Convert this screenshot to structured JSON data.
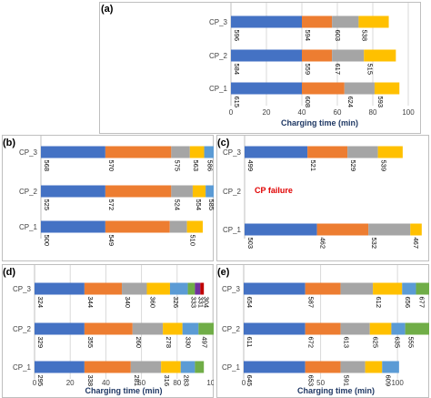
{
  "colors": {
    "blue": "#4472C4",
    "orange": "#ED7D31",
    "gray": "#A5A5A5",
    "yellow": "#FFC000",
    "lightblue": "#5B9BD5",
    "green": "#70AD47",
    "purple": "#7030A0",
    "red": "#C00000"
  },
  "chart_data": [
    {
      "id": "a",
      "panel_label": "(a)",
      "type": "bar",
      "orientation": "horizontal",
      "stacked": true,
      "categories": [
        "CP_1",
        "CP_2",
        "CP_3"
      ],
      "xlabel": "Charging time (min)",
      "xlim": [
        0,
        100
      ],
      "x_ticks": [
        0,
        20,
        40,
        60,
        80,
        100
      ],
      "segments": [
        [
          {
            "value": 40,
            "label": "615",
            "color": "blue"
          },
          {
            "value": 24,
            "label": "608",
            "color": "orange"
          },
          {
            "value": 17,
            "label": "624",
            "color": "gray"
          },
          {
            "value": 14,
            "label": "593",
            "color": "yellow"
          }
        ],
        [
          {
            "value": 40,
            "label": "584",
            "color": "blue"
          },
          {
            "value": 17,
            "label": "559",
            "color": "orange"
          },
          {
            "value": 18,
            "label": "617",
            "color": "gray"
          },
          {
            "value": 18,
            "label": "515",
            "color": "yellow"
          }
        ],
        [
          {
            "value": 40,
            "label": "596",
            "color": "blue"
          },
          {
            "value": 17,
            "label": "594",
            "color": "orange"
          },
          {
            "value": 15,
            "label": "603",
            "color": "gray"
          },
          {
            "value": 17,
            "label": "538",
            "color": "yellow"
          }
        ]
      ]
    },
    {
      "id": "b",
      "panel_label": "(b)",
      "type": "bar",
      "orientation": "horizontal",
      "stacked": true,
      "categories": [
        "CP_1",
        "CP_2",
        "CP_3"
      ],
      "xlabel": "",
      "xlim": [
        0,
        120
      ],
      "x_ticks": [],
      "segments": [
        [
          {
            "value": 45,
            "label": "500",
            "color": "blue"
          },
          {
            "value": 45,
            "label": "549",
            "color": "orange"
          },
          {
            "value": 12,
            "label": "",
            "color": "gray"
          },
          {
            "value": 11,
            "label": "510",
            "color": "yellow"
          }
        ],
        [
          {
            "value": 45,
            "label": "525",
            "color": "blue"
          },
          {
            "value": 46,
            "label": "572",
            "color": "orange"
          },
          {
            "value": 15,
            "label": "524",
            "color": "gray"
          },
          {
            "value": 9,
            "label": "554",
            "color": "yellow"
          },
          {
            "value": 18,
            "label": "585",
            "color": "lightblue"
          },
          {
            "value": 12,
            "label": "",
            "color": "green"
          }
        ],
        [
          {
            "value": 45,
            "label": "568",
            "color": "blue"
          },
          {
            "value": 46,
            "label": "570",
            "color": "orange"
          },
          {
            "value": 13,
            "label": "575",
            "color": "gray"
          },
          {
            "value": 10,
            "label": "563",
            "color": "yellow"
          },
          {
            "value": 17,
            "label": "586",
            "color": "lightblue"
          },
          {
            "value": 20,
            "label": "487",
            "color": "green"
          }
        ]
      ]
    },
    {
      "id": "c",
      "panel_label": "(c)",
      "type": "bar",
      "orientation": "horizontal",
      "stacked": true,
      "categories": [
        "CP_1",
        "CP_2",
        "CP_3"
      ],
      "xlabel": "",
      "xlim": [
        0,
        95
      ],
      "x_ticks": [],
      "annotation": "CP failure",
      "segments": [
        [
          {
            "value": 38,
            "label": "503",
            "color": "blue"
          },
          {
            "value": 27,
            "label": "462",
            "color": "orange"
          },
          {
            "value": 22,
            "label": "532",
            "color": "gray"
          },
          {
            "value": 6,
            "label": "467",
            "color": "yellow"
          }
        ],
        [],
        [
          {
            "value": 33,
            "label": "499",
            "color": "blue"
          },
          {
            "value": 21,
            "label": "521",
            "color": "orange"
          },
          {
            "value": 16,
            "label": "529",
            "color": "gray"
          },
          {
            "value": 13,
            "label": "539",
            "color": "yellow"
          }
        ]
      ]
    },
    {
      "id": "d",
      "panel_label": "(d)",
      "type": "bar",
      "orientation": "horizontal",
      "stacked": true,
      "categories": [
        "CP_1",
        "CP_2",
        "CP_3"
      ],
      "xlabel": "Charging time (min)",
      "xlim": [
        0,
        100
      ],
      "x_ticks": [
        0,
        20,
        40,
        60,
        80,
        100
      ],
      "segments": [
        [
          {
            "value": 28,
            "label": "295",
            "color": "blue"
          },
          {
            "value": 26,
            "label": "338",
            "color": "orange"
          },
          {
            "value": 17,
            "label": "281",
            "color": "gray"
          },
          {
            "value": 11,
            "label": "316",
            "color": "yellow"
          },
          {
            "value": 8,
            "label": "283",
            "color": "lightblue"
          },
          {
            "value": 5,
            "label": "",
            "color": "green"
          }
        ],
        [
          {
            "value": 28,
            "label": "329",
            "color": "blue"
          },
          {
            "value": 27,
            "label": "355",
            "color": "orange"
          },
          {
            "value": 17,
            "label": "260",
            "color": "gray"
          },
          {
            "value": 11,
            "label": "278",
            "color": "yellow"
          },
          {
            "value": 9,
            "label": "330",
            "color": "lightblue"
          },
          {
            "value": 9,
            "label": "497",
            "color": "green"
          }
        ],
        [
          {
            "value": 28,
            "label": "324",
            "color": "blue"
          },
          {
            "value": 21,
            "label": "344",
            "color": "orange"
          },
          {
            "value": 14,
            "label": "340",
            "color": "gray"
          },
          {
            "value": 13,
            "label": "360",
            "color": "yellow"
          },
          {
            "value": 10,
            "label": "326",
            "color": "lightblue"
          },
          {
            "value": 4,
            "label": "333",
            "color": "green"
          },
          {
            "value": 3,
            "label": "331",
            "color": "purple"
          },
          {
            "value": 2,
            "label": "304",
            "color": "red"
          }
        ]
      ]
    },
    {
      "id": "e",
      "panel_label": "(e)",
      "type": "bar",
      "orientation": "horizontal",
      "stacked": true,
      "categories": [
        "CP_1",
        "CP_2",
        "CP_3"
      ],
      "xlabel": "Charging time (min)",
      "xlim": [
        0,
        120
      ],
      "x_ticks": [
        0,
        50,
        100
      ],
      "segments": [
        [
          {
            "value": 40,
            "label": "645",
            "color": "blue"
          },
          {
            "value": 23,
            "label": "653",
            "color": "orange"
          },
          {
            "value": 16,
            "label": "591",
            "color": "gray"
          },
          {
            "value": 11,
            "label": "",
            "color": "yellow"
          },
          {
            "value": 11,
            "label": "609",
            "color": "lightblue"
          }
        ],
        [
          {
            "value": 40,
            "label": "611",
            "color": "blue"
          },
          {
            "value": 23,
            "label": "672",
            "color": "orange"
          },
          {
            "value": 19,
            "label": "613",
            "color": "gray"
          },
          {
            "value": 14,
            "label": "625",
            "color": "yellow"
          },
          {
            "value": 9,
            "label": "635",
            "color": "lightblue"
          },
          {
            "value": 21,
            "label": "555",
            "color": "green"
          }
        ],
        [
          {
            "value": 40,
            "label": "654",
            "color": "blue"
          },
          {
            "value": 23,
            "label": "587",
            "color": "orange"
          },
          {
            "value": 21,
            "label": "",
            "color": "gray"
          },
          {
            "value": 19,
            "label": "612",
            "color": "yellow"
          },
          {
            "value": 9,
            "label": "656",
            "color": "lightblue"
          },
          {
            "value": 15,
            "label": "677",
            "color": "green"
          }
        ]
      ]
    }
  ]
}
